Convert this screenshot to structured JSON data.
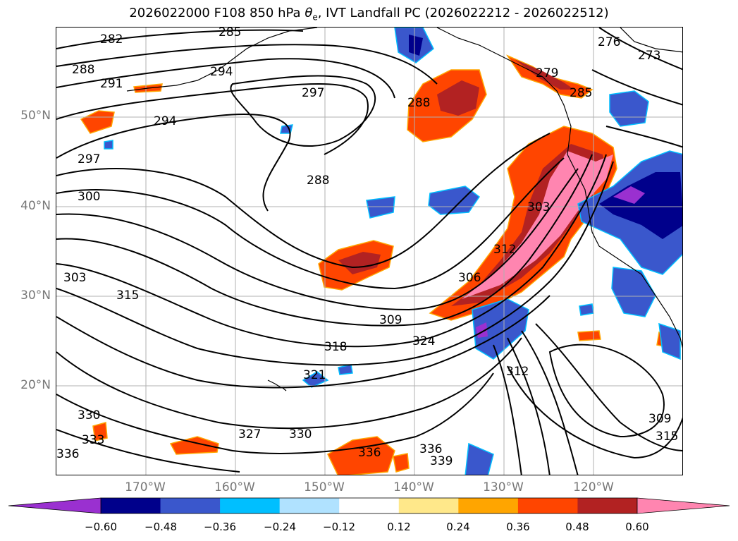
{
  "title": "2026022000 F108 850 hPa θe, IVT Landfall PC (2026022212 - 2026022512)",
  "title_parts": {
    "prefix": "2026022000 F108 850 hPa ",
    "theta": "θ",
    "sub": "e",
    "suffix": ", IVT Landfall PC (2026022212 - 2026022512)"
  },
  "map": {
    "lat_labels": [
      "50°N",
      "40°N",
      "30°N",
      "20°N"
    ],
    "lon_labels": [
      "170°W",
      "160°W",
      "150°W",
      "140°W",
      "130°W",
      "120°W"
    ],
    "contour_labels": [
      "282",
      "285",
      "288",
      "291",
      "294",
      "297",
      "297",
      "294",
      "288",
      "300",
      "303",
      "306",
      "309",
      "312",
      "315",
      "318",
      "321",
      "324",
      "327",
      "330",
      "330",
      "333",
      "336",
      "336",
      "336",
      "339",
      "276",
      "273",
      "279",
      "285",
      "288",
      "303",
      "309",
      "312",
      "315"
    ]
  },
  "colorbar": {
    "ticks": [
      "−0.60",
      "−0.48",
      "−0.36",
      "−0.24",
      "−0.12",
      "0.12",
      "0.24",
      "0.36",
      "0.48",
      "0.60"
    ],
    "colors": [
      "#9a30d0",
      "#00008b",
      "#3a57cc",
      "#00bfff",
      "#b0e2ff",
      "#ffffff",
      "#ffe88a",
      "#ffa500",
      "#ff4500",
      "#b22222",
      "#ff85b0",
      "#ff85b0"
    ],
    "under_color": "#9a30d0",
    "over_color": "#ff85b0"
  }
}
